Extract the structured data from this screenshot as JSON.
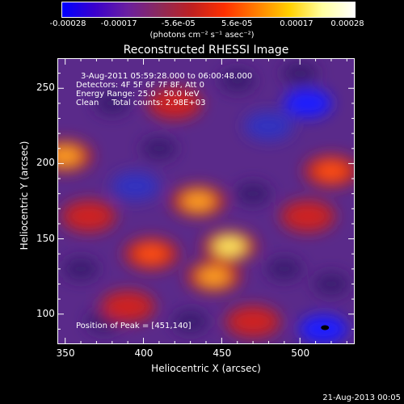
{
  "chart_data": {
    "type": "heatmap",
    "title": "Reconstructed RHESSI Image",
    "xlabel": "Heliocentric X (arcsec)",
    "ylabel": "Heliocentric Y (arcsec)",
    "xlim": [
      345,
      535
    ],
    "ylim": [
      80,
      270
    ],
    "x_ticks": [
      350,
      400,
      450,
      500
    ],
    "y_ticks": [
      100,
      150,
      200,
      250
    ],
    "colorbar": {
      "ticks": [
        "-0.00028",
        "-0.00017",
        "-5.6e-05",
        "5.6e-05",
        "0.00017",
        "0.00028"
      ],
      "tick_values": [
        -0.00028,
        -0.00017,
        -5.6e-05,
        5.6e-05,
        0.00017,
        0.00028
      ],
      "unit_label": "(photons cm⁻² s⁻¹ asec⁻²)",
      "colors": [
        "#0000ff",
        "#3a00cc",
        "#6a1fa0",
        "#8c2a5a",
        "#c02020",
        "#ff3000",
        "#ff8000",
        "#ffd000",
        "#ffffa0",
        "#ffffff"
      ]
    },
    "annotations": {
      "time_range": "3-Aug-2011 05:59:28.000 to 06:00:48.000",
      "detectors": "Detectors: 4F 5F 6F 7F 8F, Att 0",
      "energy": "Energy Range: 25.0 - 50.0 keV",
      "clean": "Clean     Total counts: 2.98E+03",
      "peak": "Position of Peak = [451,140]"
    },
    "bright_regions": [
      {
        "x": 350,
        "y": 205,
        "level": 0.9
      },
      {
        "x": 435,
        "y": 175,
        "level": 0.85
      },
      {
        "x": 455,
        "y": 145,
        "level": 1.0
      },
      {
        "x": 445,
        "y": 125,
        "level": 0.8
      },
      {
        "x": 405,
        "y": 140,
        "level": 0.7
      },
      {
        "x": 520,
        "y": 195,
        "level": 0.75
      },
      {
        "x": 505,
        "y": 165,
        "level": 0.6
      },
      {
        "x": 390,
        "y": 105,
        "level": 0.6
      },
      {
        "x": 470,
        "y": 95,
        "level": 0.55
      },
      {
        "x": 420,
        "y": 240,
        "level": 0.5
      },
      {
        "x": 365,
        "y": 165,
        "level": 0.55
      }
    ],
    "dim_regions": [
      {
        "x": 505,
        "y": 240,
        "level": -1.0
      },
      {
        "x": 515,
        "y": 90,
        "level": -1.0
      },
      {
        "x": 480,
        "y": 225,
        "level": -0.7
      },
      {
        "x": 395,
        "y": 185,
        "level": -0.6
      }
    ]
  },
  "footer": {
    "date": "21-Aug-2013 00:05"
  }
}
